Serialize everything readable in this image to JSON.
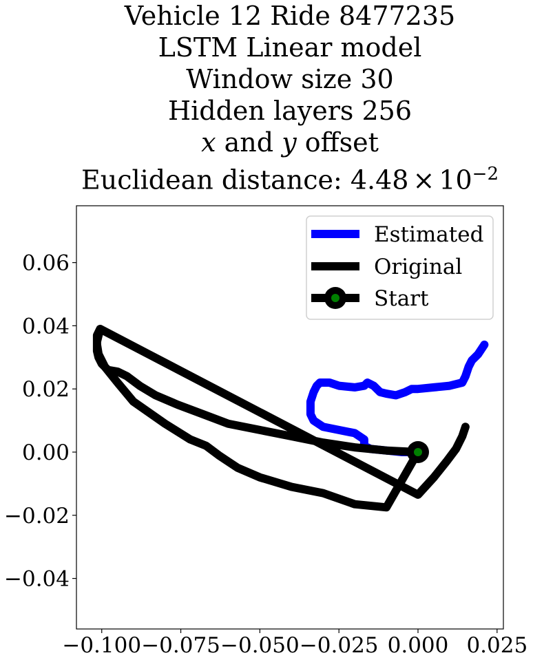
{
  "title": {
    "line1": "Vehicle 12 Ride 8477235",
    "line2": "LSTM Linear model",
    "line3": "Window size 30",
    "line4": "Hidden layers 256",
    "line5_x": "x",
    "line5_and": " and ",
    "line5_y": "y",
    "line5_rest": " offset",
    "line6_prefix": "Euclidean distance: 4.48",
    "line6_times": "×",
    "line6_base": "10",
    "line6_exp": "−2"
  },
  "legend": {
    "estimated": "Estimated",
    "original": "Original",
    "start": "Start"
  },
  "chart_data": {
    "type": "line",
    "xlim": [
      -0.108,
      0.027
    ],
    "ylim": [
      -0.056,
      0.078
    ],
    "x_ticks": [
      -0.1,
      -0.075,
      -0.05,
      -0.025,
      0.0,
      0.025
    ],
    "x_tick_labels": [
      "−0.100",
      "−0.075",
      "−0.050",
      "−0.025",
      "0.000",
      "0.025"
    ],
    "y_ticks": [
      -0.04,
      -0.02,
      0.0,
      0.02,
      0.04,
      0.06
    ],
    "y_tick_labels": [
      "−0.04",
      "−0.02",
      "0.00",
      "0.02",
      "0.04",
      "0.06"
    ],
    "grid": false,
    "legend_position": "top-right",
    "colors": {
      "estimated": "#0000ff",
      "original": "#000000",
      "start_marker": "#008000"
    },
    "series": [
      {
        "name": "Estimated",
        "x": [
          0.0,
          -0.005,
          -0.01,
          -0.015,
          -0.017,
          -0.017,
          -0.02,
          -0.025,
          -0.03,
          -0.033,
          -0.034,
          -0.034,
          -0.033,
          -0.032,
          -0.031,
          -0.028,
          -0.025,
          -0.02,
          -0.017,
          -0.016,
          -0.014,
          -0.012,
          -0.01,
          -0.007,
          -0.004,
          -0.002,
          0.0,
          0.005,
          0.01,
          0.014,
          0.015,
          0.016,
          0.017,
          0.019,
          0.021
        ],
        "y": [
          0.0,
          0.0,
          0.0005,
          0.001,
          0.002,
          0.004,
          0.006,
          0.007,
          0.008,
          0.01,
          0.012,
          0.016,
          0.019,
          0.021,
          0.022,
          0.022,
          0.021,
          0.0205,
          0.021,
          0.022,
          0.021,
          0.019,
          0.0185,
          0.018,
          0.019,
          0.02,
          0.02,
          0.0205,
          0.021,
          0.022,
          0.024,
          0.027,
          0.029,
          0.031,
          0.034
        ]
      },
      {
        "name": "Original",
        "x": [
          -0.1005,
          -0.101,
          -0.1015,
          -0.1015,
          -0.101,
          -0.1,
          -0.098,
          -0.095,
          -0.092,
          -0.088,
          -0.083,
          -0.076,
          -0.068,
          -0.06,
          -0.05,
          -0.04,
          -0.03,
          -0.02,
          -0.01,
          0.0,
          -0.01,
          -0.02,
          -0.03,
          -0.04,
          -0.05,
          -0.057,
          -0.06,
          -0.063,
          -0.067,
          -0.072,
          -0.08,
          -0.09,
          -0.095,
          -0.099,
          -0.101,
          -0.1015,
          -0.1015,
          -0.1005,
          0.0,
          0.005,
          0.009,
          0.012,
          0.014,
          0.015
        ],
        "y": [
          0.039,
          0.037,
          0.035,
          0.032,
          0.03,
          0.028,
          0.026,
          0.0255,
          0.024,
          0.021,
          0.018,
          0.015,
          0.012,
          0.009,
          0.007,
          0.005,
          0.003,
          0.0015,
          0.0005,
          0.0,
          -0.0175,
          -0.0165,
          -0.013,
          -0.011,
          -0.008,
          -0.005,
          -0.003,
          -0.001,
          0.002,
          0.004,
          0.009,
          0.016,
          0.022,
          0.027,
          0.031,
          0.034,
          0.037,
          0.039,
          -0.0135,
          -0.008,
          -0.003,
          0.001,
          0.005,
          0.008
        ]
      }
    ],
    "start_point": {
      "x": 0.0,
      "y": 0.0
    }
  }
}
